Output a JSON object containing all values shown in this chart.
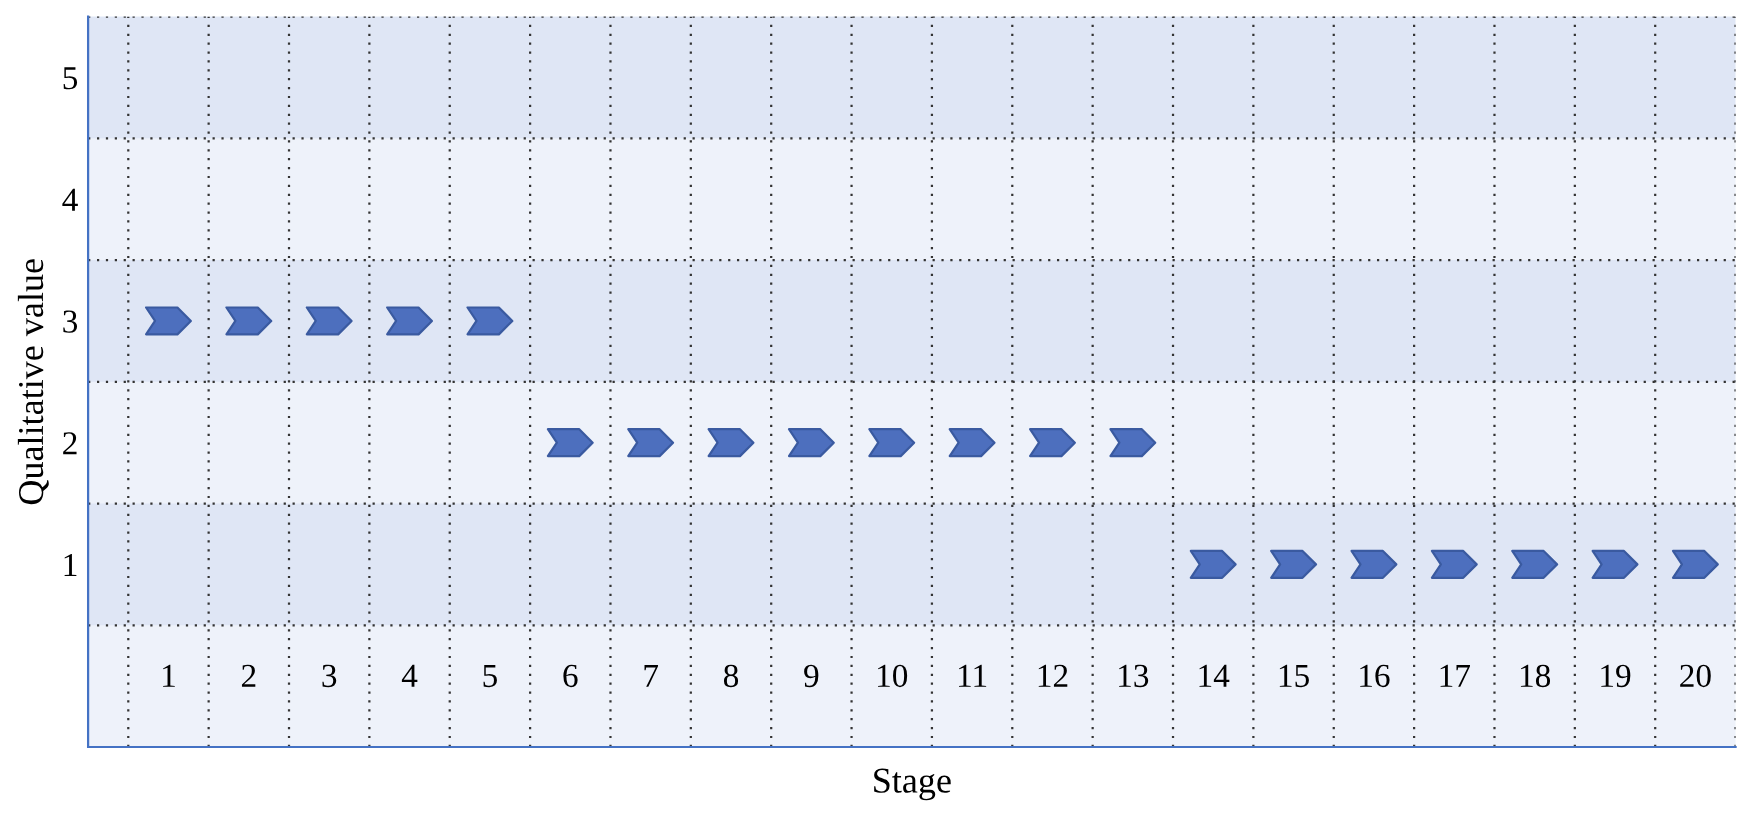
{
  "chart_data": {
    "type": "scatter",
    "xlabel": "Stage",
    "ylabel": "Qualitative value",
    "categories": [
      "1",
      "2",
      "3",
      "4",
      "5",
      "6",
      "7",
      "8",
      "9",
      "10",
      "11",
      "12",
      "13",
      "14",
      "15",
      "16",
      "17",
      "18",
      "19",
      "20"
    ],
    "series": [
      {
        "color": "#4d6fbe",
        "values": [
          3,
          3,
          3,
          3,
          3,
          2,
          2,
          2,
          2,
          2,
          2,
          2,
          2,
          1,
          1,
          1,
          1,
          1,
          1,
          1
        ]
      }
    ],
    "ylim": [
      -0.5,
      5.5
    ],
    "yticks": [
      1,
      2,
      3,
      4,
      5
    ],
    "bands": [
      {
        "axis": "y",
        "from": 0.5,
        "to": 1.5,
        "color": "#dfe6f5"
      },
      {
        "axis": "y",
        "from": 2.5,
        "to": 3.5,
        "color": "#dfe6f5"
      },
      {
        "axis": "y",
        "from": 4.5,
        "to": 5.5,
        "color": "#dfe6f5"
      }
    ],
    "grid": true
  }
}
